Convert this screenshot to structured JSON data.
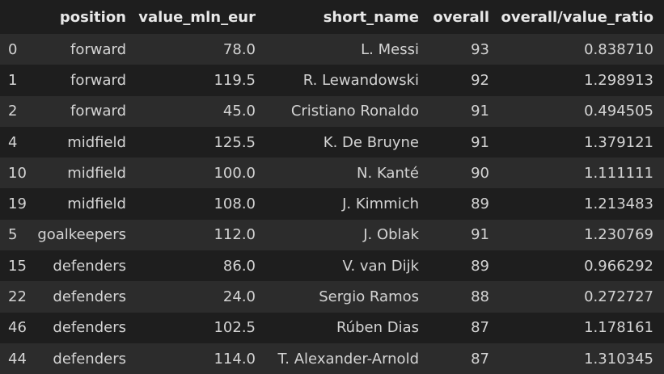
{
  "table": {
    "columns": [
      "",
      "position",
      "value_mln_eur",
      "short_name",
      "overall",
      "overall/value_ratio"
    ],
    "rows": [
      {
        "index": "0",
        "position": "forward",
        "value": "78.0",
        "name": "L. Messi",
        "overall": "93",
        "ratio": "0.838710"
      },
      {
        "index": "1",
        "position": "forward",
        "value": "119.5",
        "name": "R. Lewandowski",
        "overall": "92",
        "ratio": "1.298913"
      },
      {
        "index": "2",
        "position": "forward",
        "value": "45.0",
        "name": "Cristiano Ronaldo",
        "overall": "91",
        "ratio": "0.494505"
      },
      {
        "index": "4",
        "position": "midfield",
        "value": "125.5",
        "name": "K. De Bruyne",
        "overall": "91",
        "ratio": "1.379121"
      },
      {
        "index": "10",
        "position": "midfield",
        "value": "100.0",
        "name": "N. Kanté",
        "overall": "90",
        "ratio": "1.111111"
      },
      {
        "index": "19",
        "position": "midfield",
        "value": "108.0",
        "name": "J. Kimmich",
        "overall": "89",
        "ratio": "1.213483"
      },
      {
        "index": "5",
        "position": "goalkeepers",
        "value": "112.0",
        "name": "J. Oblak",
        "overall": "91",
        "ratio": "1.230769"
      },
      {
        "index": "15",
        "position": "defenders",
        "value": "86.0",
        "name": "V. van Dijk",
        "overall": "89",
        "ratio": "0.966292"
      },
      {
        "index": "22",
        "position": "defenders",
        "value": "24.0",
        "name": "Sergio Ramos",
        "overall": "88",
        "ratio": "0.272727"
      },
      {
        "index": "46",
        "position": "defenders",
        "value": "102.5",
        "name": "Rúben Dias",
        "overall": "87",
        "ratio": "1.178161"
      },
      {
        "index": "44",
        "position": "defenders",
        "value": "114.0",
        "name": "T. Alexander-Arnold",
        "overall": "87",
        "ratio": "1.310345"
      }
    ]
  },
  "colors": {
    "background": "#1e1e1e",
    "row_stripe": "#2c2c2c",
    "text": "#d4d4d4",
    "header_text": "#e8e8e8"
  }
}
